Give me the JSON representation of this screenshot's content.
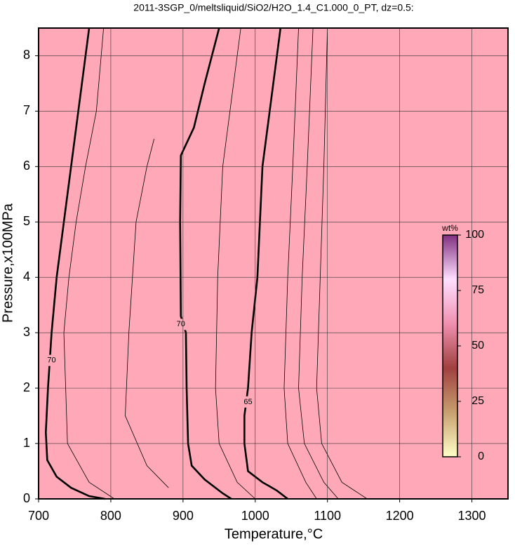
{
  "chart_data": {
    "type": "contour",
    "title": "2011-3SGP_0/meltsliquid/SiO2/H2O_1.4_C1.000_0_PT, dz=0.5:",
    "x_label": "Temperature,°C",
    "y_label": "Pressure,x100MPa",
    "xlim": [
      700,
      1350
    ],
    "xticks": [
      700,
      800,
      900,
      1000,
      1100,
      1200,
      1300
    ],
    "ylim": [
      0,
      8.5
    ],
    "yticks": [
      0,
      1,
      2,
      3,
      4,
      5,
      6,
      7,
      8
    ],
    "grid": true,
    "background": "#ffa9b8",
    "contours": [
      {
        "level": 70,
        "bold": true,
        "x": [
          770,
          760,
          745,
          735,
          725,
          718,
          713,
          710,
          712,
          725,
          745,
          770,
          792
        ],
        "y": [
          8.5,
          7.5,
          6,
          5,
          4,
          3,
          2,
          1.2,
          0.7,
          0.4,
          0.2,
          0.05,
          0
        ]
      },
      {
        "level": 70,
        "bold": true,
        "x": [
          950,
          930,
          915,
          897,
          896,
          897,
          904,
          905,
          907,
          912,
          930,
          955,
          967
        ],
        "y": [
          8.5,
          7.5,
          6.7,
          6.2,
          5,
          3.3,
          3.0,
          2,
          1,
          0.6,
          0.35,
          0.1,
          0
        ]
      },
      {
        "level": 65,
        "bold": true,
        "x": [
          1035,
          1020,
          1010,
          1003,
          995,
          990,
          985,
          985,
          990,
          1010,
          1030,
          1045
        ],
        "y": [
          8.5,
          7,
          6,
          4,
          3,
          2,
          1.5,
          1,
          0.5,
          0.3,
          0.15,
          0
        ]
      },
      {
        "bold": false,
        "x": [
          790,
          780,
          765,
          752,
          742,
          735,
          740,
          770,
          805
        ],
        "y": [
          8.5,
          7,
          6,
          5,
          4,
          3,
          1,
          0.3,
          0
        ]
      },
      {
        "bold": false,
        "x": [
          1060,
          1052,
          1045,
          1040,
          1045,
          1070,
          1085
        ],
        "y": [
          8.5,
          6,
          4,
          2,
          1,
          0.3,
          0
        ]
      },
      {
        "bold": false,
        "x": [
          1080,
          1072,
          1065,
          1060,
          1068,
          1095,
          1115
        ],
        "y": [
          8.5,
          6,
          4,
          2,
          1,
          0.3,
          0
        ]
      },
      {
        "bold": false,
        "x": [
          1100,
          1095,
          1090,
          1085,
          1092,
          1120,
          1155
        ],
        "y": [
          8.5,
          6,
          4,
          2,
          1,
          0.3,
          0
        ]
      },
      {
        "bold": false,
        "x": [
          980,
          965,
          955,
          948,
          945,
          950,
          975,
          1000
        ],
        "y": [
          8.5,
          7,
          6,
          4,
          2,
          1,
          0.3,
          0
        ]
      },
      {
        "bold": false,
        "x": [
          860,
          850,
          835,
          825,
          820,
          850,
          880
        ],
        "y": [
          6.5,
          6,
          5,
          3,
          1.5,
          0.6,
          0.2
        ]
      }
    ],
    "colorbar": {
      "label": "wt%",
      "lim": [
        0,
        100
      ],
      "ticks": [
        0,
        25,
        50,
        75,
        100
      ],
      "colors": [
        "#ffffc8",
        "#c8a070",
        "#a04040",
        "#f090b0",
        "#ffe0ff",
        "#803080"
      ]
    }
  }
}
